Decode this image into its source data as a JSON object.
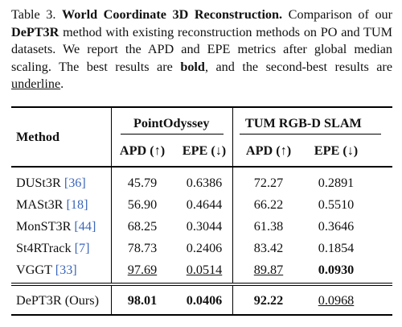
{
  "caption": {
    "prefix": "Table 3.",
    "title": "World Coordinate 3D Reconstruction.",
    "text1": "Comparison of our",
    "method": "DePT3R",
    "text2": "method with existing reconstruction methods on PO and TUM datasets. We report the APD and EPE metrics after global median scaling. The best results are",
    "bold_word": "bold",
    "text3": ", and the second-best results are",
    "underline_word": "underline",
    "text4": "."
  },
  "table": {
    "method_header": "Method",
    "group1": "PointOdyssey",
    "group2": "TUM RGB-D SLAM",
    "sub_headers": [
      "APD (↑)",
      "EPE (↓)",
      "APD (↑)",
      "EPE (↓)"
    ],
    "rows": [
      {
        "name": "DUSt3R",
        "cite": "[36]",
        "values": [
          "45.79",
          "0.6386",
          "72.27",
          "0.2891"
        ]
      },
      {
        "name": "MASt3R",
        "cite": "[18]",
        "values": [
          "56.90",
          "0.4644",
          "66.22",
          "0.5510"
        ]
      },
      {
        "name": "MonST3R",
        "cite": "[44]",
        "values": [
          "68.25",
          "0.3044",
          "61.38",
          "0.3646"
        ]
      },
      {
        "name": "St4RTrack",
        "cite": "[7]",
        "values": [
          "78.73",
          "0.2406",
          "83.42",
          "0.1854"
        ]
      },
      {
        "name": "VGGT",
        "cite": "[33]",
        "values": [
          "97.69",
          "0.0514",
          "89.87",
          "0.0930"
        ]
      }
    ],
    "ours": {
      "name": "DePT3R (Ours)",
      "values": [
        "98.01",
        "0.0406",
        "92.22",
        "0.0968"
      ]
    }
  }
}
